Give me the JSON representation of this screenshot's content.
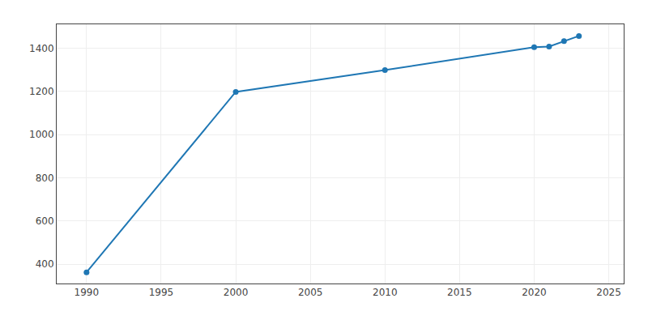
{
  "chart_data": {
    "type": "line",
    "x": [
      1990,
      2000,
      2010,
      2020,
      2021,
      2022,
      2023
    ],
    "values": [
      362,
      1197,
      1298,
      1404,
      1407,
      1432,
      1456
    ],
    "marker": "circle",
    "xlim": [
      1988,
      2026
    ],
    "ylim": [
      310,
      1510
    ],
    "xticks": [
      1990,
      1995,
      2000,
      2005,
      2010,
      2015,
      2020,
      2025
    ],
    "yticks": [
      400,
      600,
      800,
      1000,
      1200,
      1400
    ],
    "grid": true
  }
}
